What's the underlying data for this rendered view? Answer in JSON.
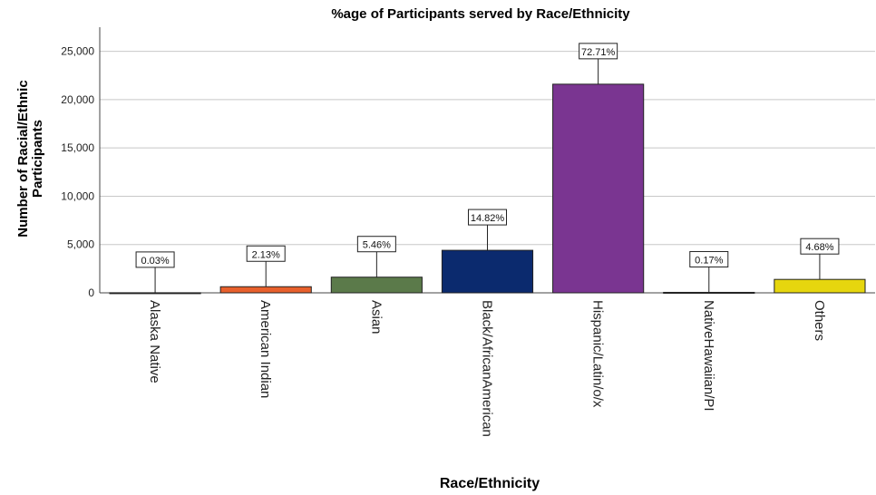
{
  "chart_data": {
    "type": "bar",
    "title": "%age of Participants served by Race/Ethnicity",
    "x_label": "Race/Ethnicity",
    "y_label": [
      "Number of Racial/Ethnic",
      "Participants"
    ],
    "categories": [
      "Alaska Native",
      "American Indian",
      "Asian",
      "Black/AfricanAmerican",
      "Hispanic/Latin/o/x",
      "NativeHawaiian/PI",
      "Others"
    ],
    "values": [
      9,
      633,
      1622,
      4403,
      21600,
      50,
      1390
    ],
    "data_labels": [
      "0.03%",
      "2.13%",
      "5.46%",
      "14.82%",
      "72.71%",
      "0.17%",
      "4.68%"
    ],
    "colors": [
      "#5aaedb",
      "#e8602c",
      "#5b7a4a",
      "#0b2a6e",
      "#7a3591",
      "#5aaedb",
      "#e6d60e"
    ],
    "ylim": [
      0,
      27500
    ],
    "yticks": [
      0,
      {
        "value": 5000,
        "label": "5,000"
      },
      {
        "value": 10000,
        "label": "10,000"
      },
      {
        "value": 15000,
        "label": "15,000"
      },
      {
        "value": 20000,
        "label": "20,000"
      },
      {
        "value": 25000,
        "label": "25,000"
      }
    ],
    "grid": true
  }
}
